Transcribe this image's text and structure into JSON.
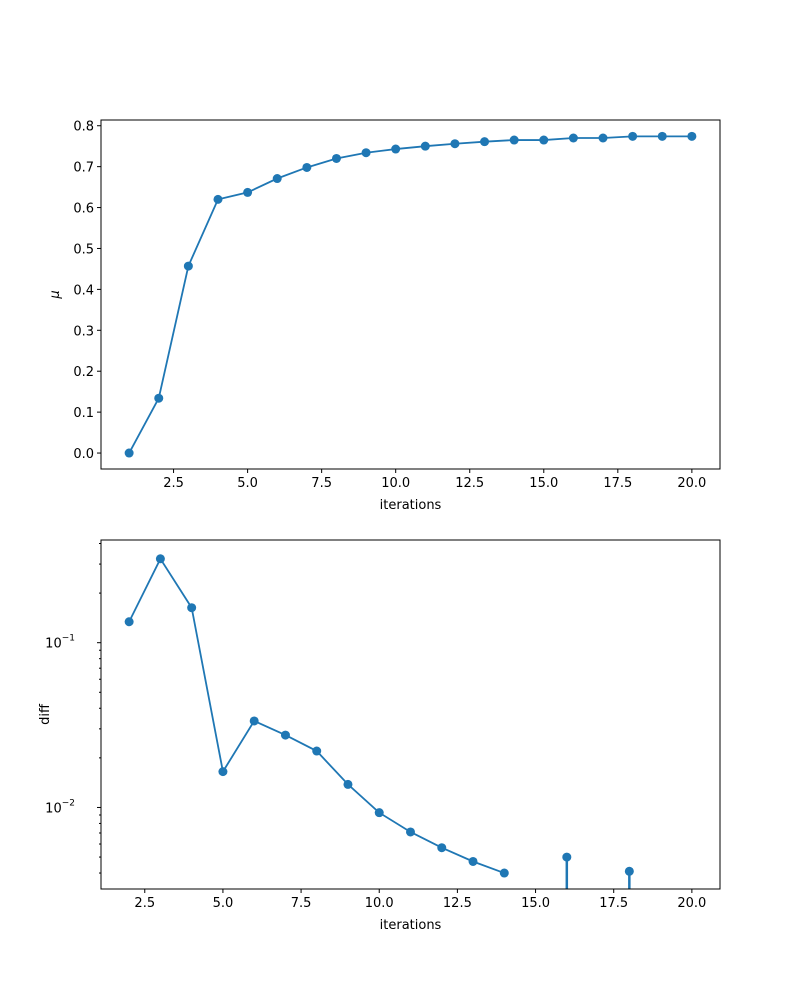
{
  "chart_data": [
    {
      "type": "line",
      "title": "",
      "xlabel": "iterations",
      "ylabel": "μ",
      "xlim": [
        0.05,
        20.95
      ],
      "ylim": [
        -0.039,
        0.814
      ],
      "yscale": "linear",
      "grid": false,
      "marker": "circle",
      "color": "#1f77b4",
      "xticks": [
        2.5,
        5.0,
        7.5,
        10.0,
        12.5,
        15.0,
        17.5,
        20.0
      ],
      "xtick_labels": [
        "2.5",
        "5.0",
        "7.5",
        "10.0",
        "12.5",
        "15.0",
        "17.5",
        "20.0"
      ],
      "yticks": [
        0.0,
        0.1,
        0.2,
        0.3,
        0.4,
        0.5,
        0.6,
        0.7,
        0.8
      ],
      "ytick_labels": [
        "0.0",
        "0.1",
        "0.2",
        "0.3",
        "0.4",
        "0.5",
        "0.6",
        "0.7",
        "0.8"
      ],
      "series": [
        {
          "x": [
            1,
            2,
            3,
            4,
            5,
            6,
            7,
            8,
            9,
            10,
            11,
            12,
            13,
            14,
            15,
            16,
            17,
            18,
            19,
            20
          ],
          "values": [
            0.0,
            0.134,
            0.457,
            0.62,
            0.637,
            0.671,
            0.698,
            0.72,
            0.734,
            0.743,
            0.75,
            0.756,
            0.761,
            0.765,
            0.765,
            0.77,
            0.77,
            0.774,
            0.774,
            0.774
          ]
        }
      ]
    },
    {
      "type": "line",
      "title": "",
      "xlabel": "iterations",
      "ylabel": "diff",
      "xlim": [
        1.1,
        20.9
      ],
      "ylim": [
        0.0032,
        0.42
      ],
      "yscale": "log",
      "grid": false,
      "marker": "circle",
      "color": "#1f77b4",
      "xticks": [
        2.5,
        5.0,
        7.5,
        10.0,
        12.5,
        15.0,
        17.5,
        20.0
      ],
      "xtick_labels": [
        "2.5",
        "5.0",
        "7.5",
        "10.0",
        "12.5",
        "15.0",
        "17.5",
        "20.0"
      ],
      "yticks": [
        0.01,
        0.1
      ],
      "ytick_labels": [
        {
          "base": "10",
          "exp": "−2"
        },
        {
          "base": "10",
          "exp": "−1"
        }
      ],
      "series": [
        {
          "x": [
            2,
            3,
            4,
            5,
            6,
            7,
            8,
            9,
            10,
            11,
            12,
            13,
            14
          ],
          "values": [
            0.134,
            0.323,
            0.163,
            0.0165,
            0.0335,
            0.0275,
            0.022,
            0.0138,
            0.0093,
            0.0071,
            0.0057,
            0.0047,
            0.004
          ]
        },
        {
          "x": [
            16
          ],
          "values": [
            0.005
          ],
          "drop_to_zero": true
        },
        {
          "x": [
            18
          ],
          "values": [
            0.0041
          ],
          "drop_to_zero": true
        }
      ]
    }
  ]
}
